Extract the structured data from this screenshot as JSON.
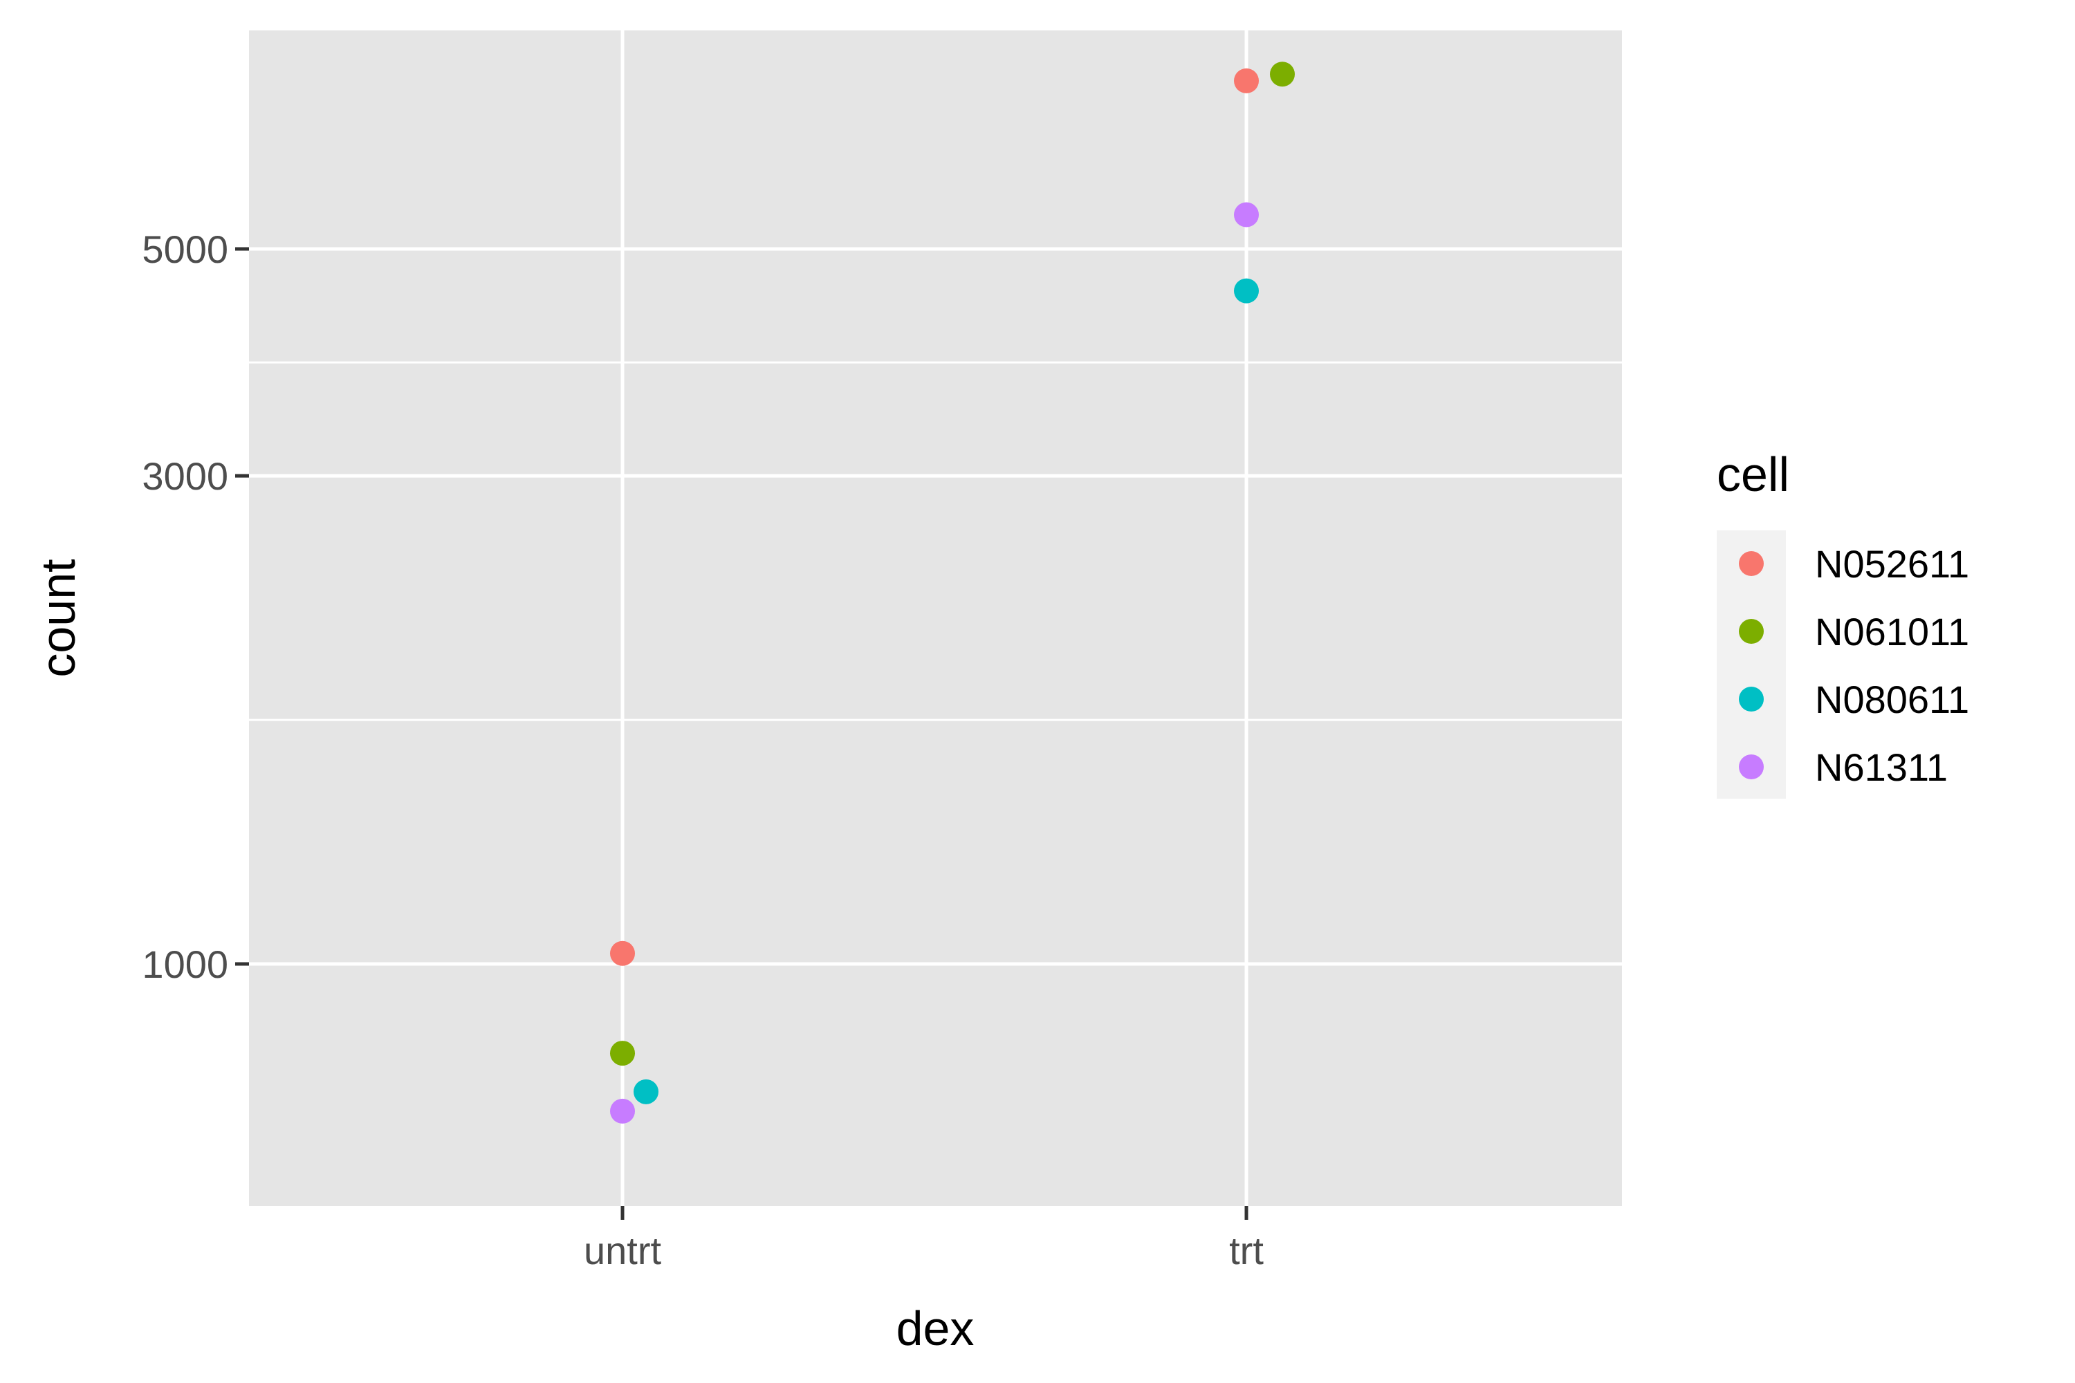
{
  "chart_data": {
    "type": "scatter",
    "title": "",
    "xlabel": "dex",
    "ylabel": "count",
    "y_scale": "log10",
    "ylim": [
      650,
      7700
    ],
    "categories": [
      "untrt",
      "trt"
    ],
    "y_ticks": [
      1000,
      3000,
      5000
    ],
    "y_tick_labels": [
      "1000",
      "3000",
      "5000"
    ],
    "legend": {
      "title": "cell",
      "position": "right"
    },
    "series": [
      {
        "name": "N052611",
        "color": "#F8766D",
        "points": [
          {
            "x": "untrt",
            "y": 1024
          },
          {
            "x": "trt",
            "y": 7300
          }
        ]
      },
      {
        "name": "N061011",
        "color": "#7CAE00",
        "points": [
          {
            "x": "untrt",
            "y": 818
          },
          {
            "x": "trt",
            "y": 7410
          }
        ]
      },
      {
        "name": "N080611",
        "color": "#00BFC4",
        "points": [
          {
            "x": "untrt",
            "y": 750
          },
          {
            "x": "trt",
            "y": 4550
          }
        ]
      },
      {
        "name": "N61311",
        "color": "#C77CFF",
        "points": [
          {
            "x": "untrt",
            "y": 718
          },
          {
            "x": "trt",
            "y": 5400
          }
        ]
      }
    ]
  }
}
